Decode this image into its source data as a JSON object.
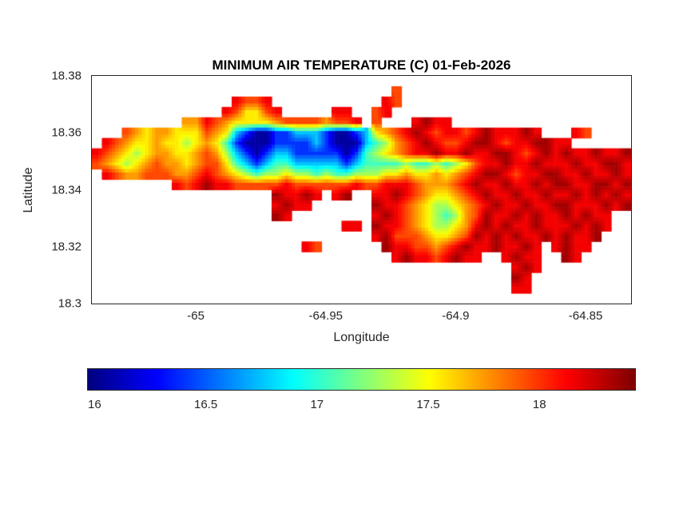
{
  "chart_data": {
    "type": "heatmap",
    "title": "MINIMUM AIR TEMPERATURE (C) 01-Feb-2026",
    "colormap": "jet",
    "x_axis": {
      "label": "Longitude",
      "min": -65.04,
      "max": -64.8325,
      "ticks": [
        {
          "value": -65,
          "label": "-65"
        },
        {
          "value": -64.95,
          "label": "-64.95"
        },
        {
          "value": -64.9,
          "label": "-64.9"
        },
        {
          "value": -64.85,
          "label": "-64.85"
        }
      ]
    },
    "y_axis": {
      "label": "Latitude",
      "min": 18.3,
      "max": 18.38,
      "ticks": [
        {
          "value": 18.38,
          "label": "18.38"
        },
        {
          "value": 18.36,
          "label": "18.36"
        },
        {
          "value": 18.34,
          "label": "18.34"
        },
        {
          "value": 18.32,
          "label": "18.32"
        },
        {
          "value": 18.3,
          "label": "18.3"
        }
      ]
    },
    "colorbar": {
      "orientation": "horizontal",
      "min": 15.97,
      "max": 18.43,
      "ticks": [
        {
          "value": 16,
          "label": "16"
        },
        {
          "value": 16.5,
          "label": "16.5"
        },
        {
          "value": 17,
          "label": "17"
        },
        {
          "value": 17.5,
          "label": "17.5"
        },
        {
          "value": 18,
          "label": "18"
        }
      ]
    },
    "grid": {
      "ocean_char": ".",
      "legend_temperatures": {
        "1": 16.05,
        "2": 16.4,
        "3": 16.75,
        "4": 17.05,
        "5": 17.3,
        "6": 17.55,
        "7": 17.75,
        "8": 17.95,
        "9": 18.15,
        "A": 18.35
      },
      "rows": [
        "......................................................",
        "..............................8.......................",
        "..............9889...........98.......................",
        ".............986689.....99..89........................",
        ".........779876666788887889.8...9A99..................",
        "...87677666876321122333211236789A989989A999A9...98....",
        ".98766766567642111222232111345789A9889AA9899AA99......",
        "9876567766787532123322222124567899A99A99AA989A9A99A99A",
        "87656787767886432344333332344445445456899A99A999A99AA9",
        ".98778887789876545565545445556676676789AA9899AA99A99A9",
        "........989A99888889888888988999877789A99A99A9AA99AA9A",
        "..................A99A9.9A..99A98766789A99A99A99A9A9A9",
        "..................9A99......A99876556789A99A99AA999A9A",
        "..................A9........9A987654578A99A9A99A9A99..",
        ".........................99.A9987655679A9A99A999A9A9..",
        "............................9A88876678A9A9A99A9A99A...",
        ".....................98......A9988789A99A99A9.9A99....",
        "..............................9A9989A99..9A99..A9.....",
        "..........................................9A9.........",
        "..........................................A9..........",
        "..........................................99..........",
        "......................................................"
      ]
    }
  }
}
